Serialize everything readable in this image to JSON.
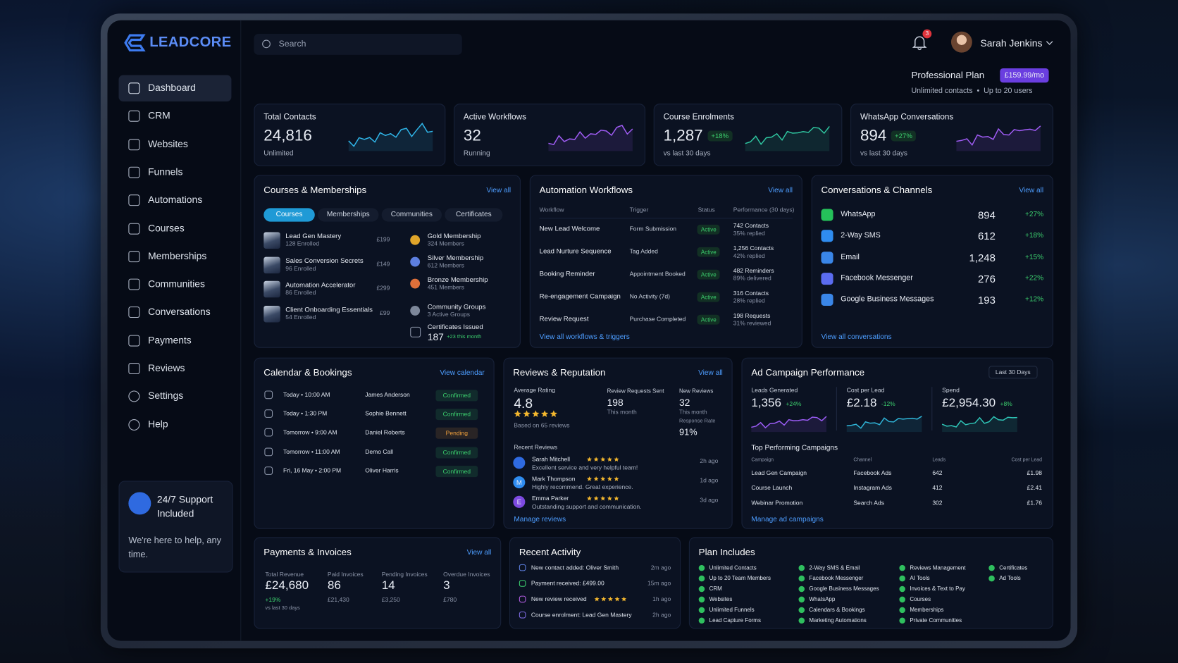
{
  "brand": "LEADCORE",
  "search": "Search",
  "notifications": "3",
  "user_name": "Sarah Jenkins",
  "nav": [
    "Dashboard",
    "CRM",
    "Websites",
    "Funnels",
    "Automations",
    "Courses",
    "Memberships",
    "Communities",
    "Conversations",
    "Payments",
    "Reviews",
    "Settings",
    "Help"
  ],
  "support": {
    "title": "24/7 Support Included",
    "text": "We're here to help, any time."
  },
  "plan": {
    "name": "Professional Plan",
    "price": "£159.99/mo",
    "details": "Unlimited contacts  •  Up to 20 users"
  },
  "stats": [
    {
      "label": "Total Contacts",
      "value": "24,816",
      "note": "Unlimited"
    },
    {
      "label": "Active Workflows",
      "value": "32",
      "note": "Running"
    },
    {
      "label": "Course Enrolments",
      "value": "1,287",
      "change": "+18%",
      "note": "vs last 30 days"
    },
    {
      "label": "WhatsApp Conversations",
      "value": "894",
      "change": "+27%",
      "note": "vs last 30 days"
    }
  ],
  "courses_panel": {
    "title": "Courses & Memberships",
    "link": "View all",
    "tabs": [
      "Courses",
      "Memberships",
      "Communities",
      "Certificates"
    ],
    "courses": [
      {
        "name": "Lead Gen Mastery",
        "enrolled": "128 Enrolled",
        "price": "£199"
      },
      {
        "name": "Sales Conversion Secrets",
        "enrolled": "96 Enrolled",
        "price": "£149"
      },
      {
        "name": "Automation Accelerator",
        "enrolled": "86 Enrolled",
        "price": "£299"
      },
      {
        "name": "Client Onboarding Essentials",
        "enrolled": "54 Enrolled",
        "price": "£99"
      }
    ],
    "memberships": [
      {
        "name": "Gold Membership",
        "detail": "324 Members",
        "color": "#e0a52a"
      },
      {
        "name": "Silver Membership",
        "detail": "612 Members",
        "color": "#5d7fe0"
      },
      {
        "name": "Bronze Membership",
        "detail": "451 Members",
        "color": "#e0703a"
      },
      {
        "name": "Community Groups",
        "detail": "3 Active Groups",
        "color": "#7d879a"
      }
    ],
    "certificates": {
      "label": "Certificates Issued",
      "value": "187",
      "note": "+23 this month"
    }
  },
  "automation": {
    "title": "Automation Workflows",
    "link": "View all",
    "columns": [
      "Workflow",
      "Trigger",
      "Status",
      "Performance (30 days)"
    ],
    "rows": [
      {
        "workflow": "New Lead Welcome",
        "trigger": "Form Submission",
        "status": "Active",
        "performance": "742 Contacts",
        "detail": "35% replied"
      },
      {
        "workflow": "Lead Nurture Sequence",
        "trigger": "Tag Added",
        "status": "Active",
        "performance": "1,256 Contacts",
        "detail": "42% replied"
      },
      {
        "workflow": "Booking Reminder",
        "trigger": "Appointment Booked",
        "status": "Active",
        "performance": "482 Reminders",
        "detail": "89% delivered"
      },
      {
        "workflow": "Re-engagement Campaign",
        "trigger": "No Activity (7d)",
        "status": "Active",
        "performance": "316 Contacts",
        "detail": "28% replied"
      },
      {
        "workflow": "Review Request",
        "trigger": "Purchase Completed",
        "status": "Active",
        "performance": "198 Requests",
        "detail": "31% reviewed"
      }
    ],
    "footer_link": "View all workflows & triggers"
  },
  "conversations": {
    "title": "Conversations & Channels",
    "link": "View all",
    "channels": [
      {
        "name": "WhatsApp",
        "count": "894",
        "change": "+27%",
        "color": "#25c15a"
      },
      {
        "name": "2-Way SMS",
        "count": "612",
        "change": "+18%",
        "color": "#2f8cf0"
      },
      {
        "name": "Email",
        "count": "1,248",
        "change": "+15%",
        "color": "#3a86e8"
      },
      {
        "name": "Facebook Messenger",
        "count": "276",
        "change": "+22%",
        "color": "#5b6cf0"
      },
      {
        "name": "Google Business Messages",
        "count": "193",
        "change": "+12%",
        "color": "#3a86e8"
      }
    ],
    "footer_link": "View all conversations"
  },
  "calendar": {
    "title": "Calendar & Bookings",
    "link": "View calendar",
    "bookings": [
      {
        "time": "Today • 10:00 AM",
        "name": "James Anderson",
        "status": "Confirmed",
        "color": "#3ccf6e"
      },
      {
        "time": "Today • 1:30 PM",
        "name": "Sophie Bennett",
        "status": "Confirmed",
        "color": "#3ccf6e"
      },
      {
        "time": "Tomorrow • 9:00 AM",
        "name": "Daniel Roberts",
        "status": "Pending",
        "color": "#f0a03c"
      },
      {
        "time": "Tomorrow • 11:00 AM",
        "name": "Demo Call",
        "status": "Confirmed",
        "color": "#3ccf6e"
      },
      {
        "time": "Fri, 16 May • 2:00 PM",
        "name": "Oliver Harris",
        "status": "Confirmed",
        "color": "#3ccf6e"
      }
    ]
  },
  "reviews": {
    "title": "Reviews & Reputation",
    "link": "View all",
    "avg_label": "Average Rating",
    "avg": "4.8",
    "based": "Based on 65 reviews",
    "sent_label": "Review Requests Sent",
    "sent": "198",
    "sent_note": "This month",
    "new_label": "New Reviews",
    "new": "32",
    "new_note": "This month",
    "rate_label": "Response Rate",
    "rate": "91%",
    "recent_title": "Recent Reviews",
    "recent": [
      {
        "name": "Sarah Mitchell",
        "text": "Excellent service and very helpful team!",
        "time": "2h ago",
        "color": "#2f6ae0"
      },
      {
        "initial": "M",
        "name": "Mark Thompson",
        "text": "Highly recommend. Great experience.",
        "time": "1d ago",
        "color": "#2f8cf0"
      },
      {
        "initial": "E",
        "name": "Emma Parker",
        "text": "Outstanding support and communication.",
        "time": "3d ago",
        "color": "#7d4ae0"
      }
    ],
    "footer_link": "Manage reviews"
  },
  "ads": {
    "title": "Ad Campaign Performance",
    "range": "Last 30 Days",
    "metrics": [
      {
        "label": "Leads Generated",
        "value": "1,356",
        "change": "+24%",
        "color": "#9b5cf5"
      },
      {
        "label": "Cost per Lead",
        "value": "£2.18",
        "change": "-12%",
        "color": "#2fb5d8"
      },
      {
        "label": "Spend",
        "value": "£2,954.30",
        "change": "+8%",
        "color": "#2fc6b8"
      }
    ],
    "top_title": "Top Performing Campaigns",
    "columns": [
      "Campaign",
      "Channel",
      "Leads",
      "Cost per Lead"
    ],
    "rows": [
      [
        "Lead Gen Campaign",
        "Facebook Ads",
        "642",
        "£1.98"
      ],
      [
        "Course Launch",
        "Instagram Ads",
        "412",
        "£2.41"
      ],
      [
        "Webinar Promotion",
        "Search Ads",
        "302",
        "£1.76"
      ]
    ],
    "footer_link": "Manage ad campaigns"
  },
  "payments": {
    "title": "Payments & Invoices",
    "link": "View all",
    "total_label": "Total Revenue",
    "total": "£24,680",
    "total_change": "+19%",
    "total_note": "vs last 30 days",
    "invoices": [
      {
        "label": "Paid Invoices",
        "value": "86",
        "amount": "£21,430"
      },
      {
        "label": "Pending Invoices",
        "value": "14",
        "amount": "£3,250"
      },
      {
        "label": "Overdue Invoices",
        "value": "3",
        "amount": "£780"
      }
    ]
  },
  "activity": {
    "title": "Recent Activity",
    "items": [
      {
        "text": "New contact added: Oliver Smith",
        "time": "2m ago",
        "color": "#5d7fe0"
      },
      {
        "text": "Payment received: £499.00",
        "time": "15m ago",
        "color": "#3ccf6e"
      },
      {
        "text": "New review received",
        "time": "1h ago",
        "color": "#b05ce0",
        "stars": true
      },
      {
        "text": "Course enrolment: Lead Gen Mastery",
        "time": "2h ago",
        "color": "#7d6ae0"
      }
    ]
  },
  "plan_includes": {
    "title": "Plan Includes",
    "columns": [
      [
        "Unlimited Contacts",
        "Up to 20 Team Members",
        "CRM",
        "Websites",
        "Unlimited Funnels",
        "Lead Capture Forms"
      ],
      [
        "2-Way SMS & Email",
        "Facebook Messenger",
        "Google Business Messages",
        "WhatsApp",
        "Calendars & Bookings",
        "Marketing Automations"
      ],
      [
        "Reviews Management",
        "AI Tools",
        "Invoices & Text to Pay",
        "Courses",
        "Memberships",
        "Private Communities"
      ],
      [
        "Certificates",
        "Ad Tools"
      ]
    ]
  }
}
